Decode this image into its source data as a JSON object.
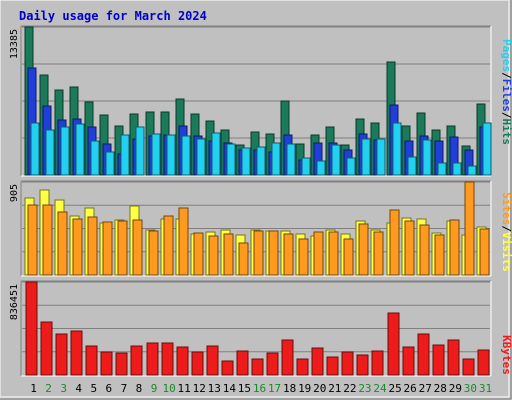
{
  "title": "Daily usage for March 2024",
  "colors": {
    "background": "#c0c0c0",
    "title": "#0000cc",
    "hits": "#1a7a5a",
    "files": "#1f3fd8",
    "pages": "#22d0f0",
    "visits": "#ffff44",
    "sites": "#ff9a1e",
    "kbytes": "#ee1b1b",
    "weekend_day": "#1a8a2a",
    "weekday_day": "#000000"
  },
  "chart_data": [
    {
      "type": "bar",
      "panel": "top",
      "categories": [
        "1",
        "2",
        "3",
        "4",
        "5",
        "6",
        "7",
        "8",
        "9",
        "10",
        "11",
        "12",
        "13",
        "14",
        "15",
        "16",
        "17",
        "18",
        "19",
        "20",
        "21",
        "22",
        "23",
        "24",
        "25",
        "26",
        "27",
        "28",
        "29",
        "30",
        "31"
      ],
      "weekend_days": [
        "2",
        "3",
        "9",
        "10",
        "16",
        "17",
        "23",
        "24",
        "30",
        "31"
      ],
      "y_tick_label": "13385",
      "ylim": [
        0,
        13385
      ],
      "series": [
        {
          "name": "Hits",
          "color_key": "hits",
          "values": [
            13385,
            9000,
            7700,
            8000,
            6600,
            5400,
            4400,
            5500,
            5700,
            5700,
            6900,
            5500,
            4900,
            4100,
            2700,
            3900,
            3700,
            6700,
            2800,
            3600,
            4300,
            2700,
            5100,
            4700,
            10200,
            4400,
            5600,
            4100,
            4400,
            2600,
            6400
          ]
        },
        {
          "name": "Files",
          "color_key": "files",
          "values": [
            9700,
            6200,
            5000,
            5100,
            4300,
            2800,
            1900,
            3300,
            3500,
            3600,
            4400,
            3500,
            3100,
            2900,
            2300,
            2300,
            2100,
            3600,
            1400,
            2900,
            2900,
            2300,
            3700,
            3200,
            6300,
            3100,
            3500,
            3100,
            3400,
            2300,
            4300
          ]
        },
        {
          "name": "Pages",
          "color_key": "pages",
          "values": [
            4700,
            4100,
            4300,
            4600,
            3100,
            2100,
            3600,
            4300,
            3700,
            3600,
            3500,
            3300,
            3800,
            2800,
            2400,
            2500,
            2900,
            2800,
            1500,
            1300,
            2700,
            1500,
            3300,
            3300,
            4700,
            1600,
            3200,
            1100,
            1100,
            800,
            4700
          ]
        }
      ]
    },
    {
      "type": "bar",
      "panel": "middle",
      "categories": [
        "1",
        "2",
        "3",
        "4",
        "5",
        "6",
        "7",
        "8",
        "9",
        "10",
        "11",
        "12",
        "13",
        "14",
        "15",
        "16",
        "17",
        "18",
        "19",
        "20",
        "21",
        "22",
        "23",
        "24",
        "25",
        "26",
        "27",
        "28",
        "29",
        "30",
        "31"
      ],
      "y_tick_label": "905",
      "ylim": [
        0,
        905
      ],
      "series": [
        {
          "name": "Visits",
          "color_key": "visits",
          "values": [
            750,
            825,
            725,
            570,
            655,
            510,
            535,
            670,
            440,
            545,
            545,
            400,
            420,
            440,
            385,
            435,
            425,
            425,
            395,
            380,
            435,
            395,
            525,
            440,
            505,
            555,
            545,
            405,
            525,
            390,
            470
          ]
        },
        {
          "name": "Sites",
          "color_key": "sites",
          "values": [
            680,
            685,
            615,
            545,
            565,
            520,
            530,
            535,
            430,
            575,
            650,
            410,
            375,
            400,
            315,
            425,
            425,
            400,
            350,
            420,
            415,
            355,
            500,
            420,
            635,
            530,
            490,
            385,
            540,
            905,
            450
          ]
        }
      ]
    },
    {
      "type": "bar",
      "panel": "bottom",
      "categories": [
        "1",
        "2",
        "3",
        "4",
        "5",
        "6",
        "7",
        "8",
        "9",
        "10",
        "11",
        "12",
        "13",
        "14",
        "15",
        "16",
        "17",
        "18",
        "19",
        "20",
        "21",
        "22",
        "23",
        "24",
        "25",
        "26",
        "27",
        "28",
        "29",
        "30",
        "31"
      ],
      "y_tick_label": "836451",
      "ylim": [
        0,
        836451
      ],
      "series": [
        {
          "name": "KBytes",
          "color_key": "kbytes",
          "values": [
            836451,
            480000,
            365000,
            395000,
            260000,
            208000,
            200000,
            262000,
            290000,
            285000,
            250000,
            208000,
            265000,
            130000,
            212000,
            145000,
            198000,
            315000,
            140000,
            245000,
            162000,
            210000,
            182000,
            215000,
            558000,
            250000,
            370000,
            270000,
            318000,
            145000,
            222000
          ]
        }
      ]
    }
  ],
  "legend": {
    "top": [
      "Pages",
      "/",
      "Files",
      "/",
      "Hits"
    ],
    "middle": [
      "Sites",
      "/",
      "Visits"
    ],
    "bottom": [
      "KBytes"
    ]
  }
}
